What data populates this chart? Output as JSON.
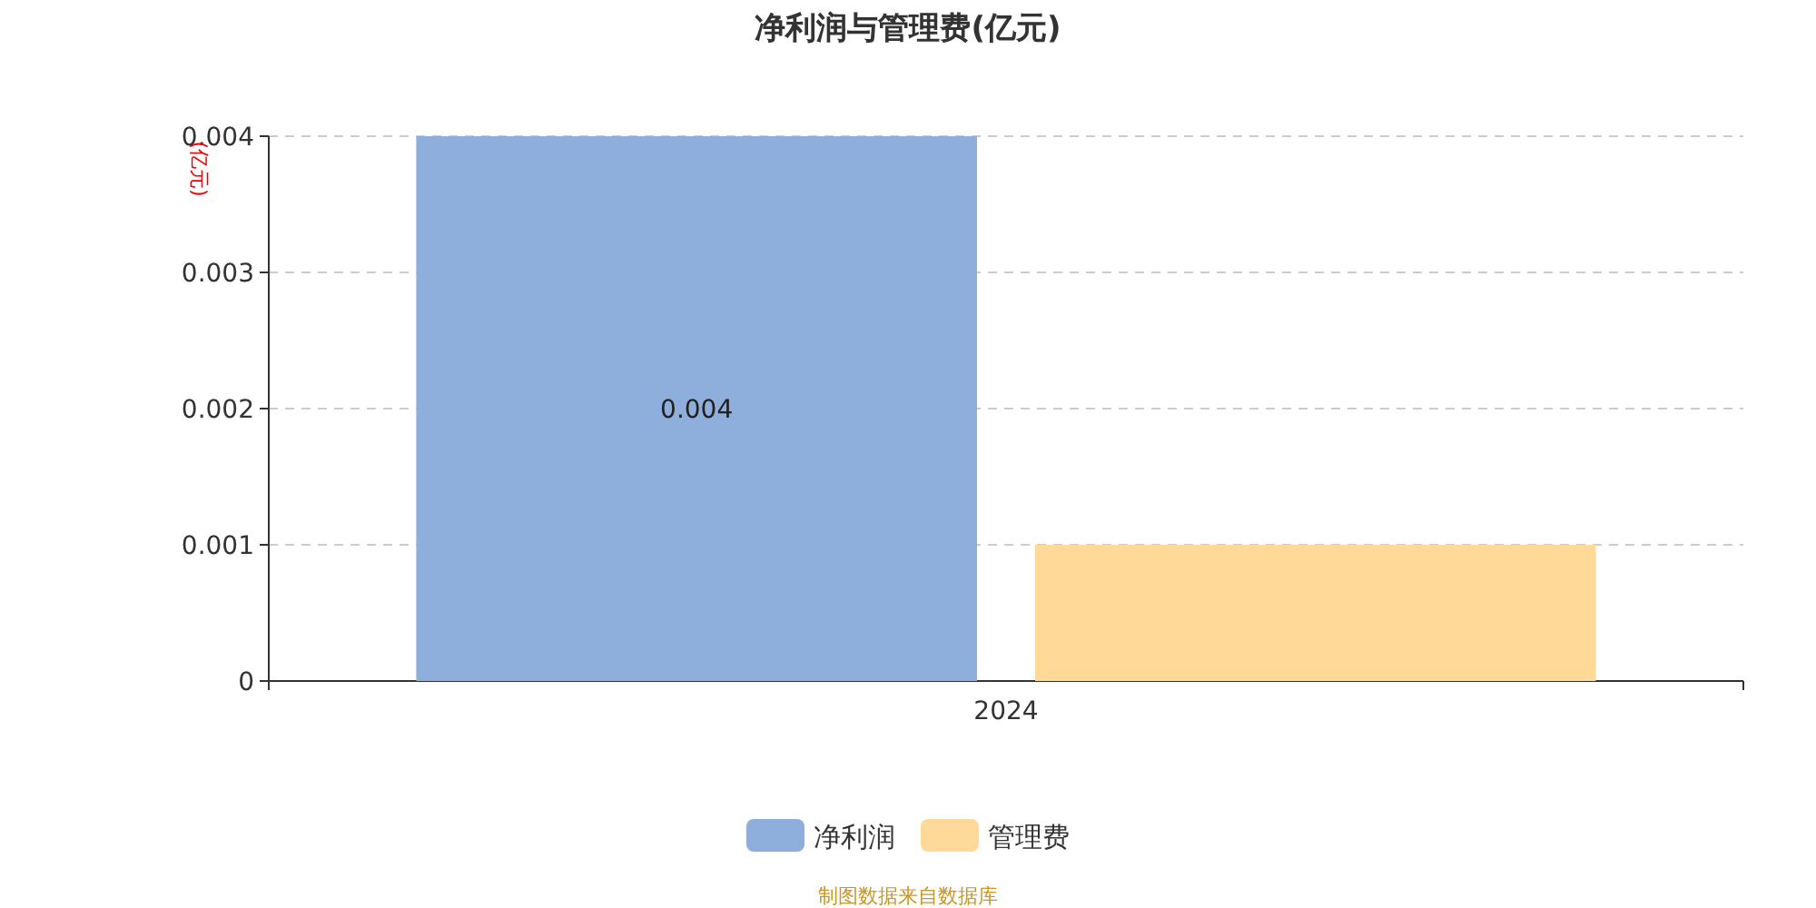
{
  "chart_data": {
    "type": "bar",
    "title": "净利润与管理费(亿元)",
    "ylabel": "(亿元)",
    "categories": [
      "2024"
    ],
    "series": [
      {
        "name": "净利润",
        "color": "#8eaedb",
        "values": [
          0.004
        ],
        "value_labels": [
          "0.004"
        ]
      },
      {
        "name": "管理费",
        "color": "#fed998",
        "values": [
          0.001
        ],
        "value_labels": [
          null
        ]
      }
    ],
    "ylim": [
      0,
      0.004
    ],
    "yticks": [
      0,
      0.001,
      0.002,
      0.003,
      0.004
    ],
    "grid": "y",
    "legend": "bottom",
    "annotations": [
      "制图数据来自数据库"
    ]
  }
}
